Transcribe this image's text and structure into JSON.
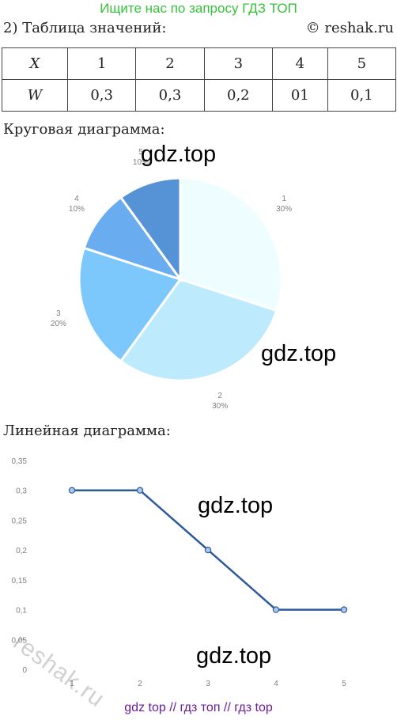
{
  "header": {
    "banner": "Ищите нас по запросу ГДЗ ТОП",
    "task": "2) Таблица значений:",
    "credit": "© reshak.ru"
  },
  "table": {
    "row_x": [
      "X",
      "1",
      "2",
      "3",
      "4",
      "5"
    ],
    "row_w": [
      "W",
      "0,3",
      "0,3",
      "0,2",
      "01",
      "0,1"
    ]
  },
  "sections": {
    "pie_title": "Круговая диаграмма:",
    "line_title": "Линейная диаграмма:"
  },
  "watermarks": {
    "pie_top": "gdz.top",
    "pie_bottom": "gdz.top",
    "line_top": "gdz.top",
    "line_bottom": "gdz.top",
    "diagonal": "reshak.ru"
  },
  "footer": {
    "banner": "gdz top  //  гдз топ  //  гдз top"
  },
  "colors": {
    "banner": "#35c23a",
    "footer": "#6a1b9a",
    "pie_slices": [
      "#eefdff",
      "#bdeafc",
      "#7cc7fb",
      "#6aacf0",
      "#5593d6"
    ],
    "line": "#2f5a9a"
  },
  "chart_data": [
    {
      "type": "pie",
      "categories": [
        "1",
        "2",
        "3",
        "4",
        "5"
      ],
      "values": [
        30,
        30,
        20,
        10,
        10
      ],
      "labels": [
        "30%",
        "30%",
        "20%",
        "10%",
        "10%"
      ],
      "title": ""
    },
    {
      "type": "line",
      "x": [
        1,
        2,
        3,
        4,
        5
      ],
      "y": [
        0.3,
        0.3,
        0.2,
        0.1,
        0.1
      ],
      "ylim": [
        0,
        0.35
      ],
      "yticks": [
        "0",
        "0,05",
        "0,1",
        "0,15",
        "0,2",
        "0,25",
        "0,3",
        "0,35"
      ],
      "xticks": [
        "1",
        "2",
        "3",
        "4",
        "5"
      ],
      "grid": false,
      "title": ""
    }
  ]
}
